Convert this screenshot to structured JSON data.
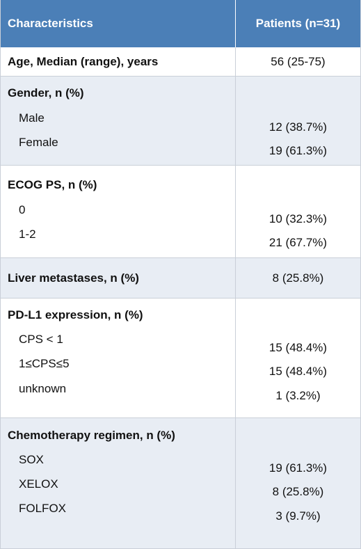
{
  "header": {
    "characteristics": "Characteristics",
    "patients": "Patients (n=31)"
  },
  "rows": [
    {
      "label": "Age, Median (range), years",
      "value": "56 (25-75)"
    },
    {
      "label": "Gender, n (%)",
      "items": [
        {
          "label": "Male",
          "value": "12 (38.7%)"
        },
        {
          "label": "Female",
          "value": "19 (61.3%)"
        }
      ]
    },
    {
      "label": "ECOG PS, n (%)",
      "items": [
        {
          "label": "0",
          "value": "10 (32.3%)"
        },
        {
          "label": "1-2",
          "value": "21 (67.7%)"
        }
      ]
    },
    {
      "label": "Liver metastases, n (%)",
      "value": "8 (25.8%)"
    },
    {
      "label": "PD-L1 expression, n (%)",
      "items": [
        {
          "label": "CPS < 1",
          "value": "15 (48.4%)"
        },
        {
          "label": "1≤CPS≤5",
          "value": "15 (48.4%)"
        },
        {
          "label": "unknown",
          "value": "1 (3.2%)"
        }
      ]
    },
    {
      "label": "Chemotherapy regimen, n (%)",
      "items": [
        {
          "label": "SOX",
          "value": "19 (61.3%)"
        },
        {
          "label": "XELOX",
          "value": "8 (25.8%)"
        },
        {
          "label": "FOLFOX",
          "value": "3 (9.7%)"
        }
      ]
    }
  ]
}
